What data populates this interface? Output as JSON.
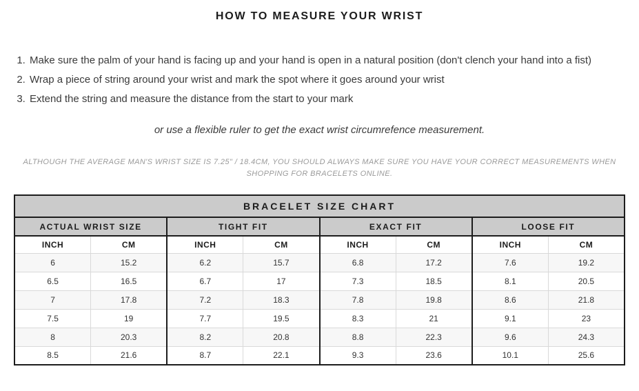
{
  "page": {
    "title": "HOW TO MEASURE YOUR WRIST"
  },
  "instructions": {
    "items": [
      "Make sure the palm of your hand is facing up and your hand is open in a natural position (don't clench your hand into a fist)",
      "Wrap a piece of string around your wrist and mark the spot where it goes around your wrist",
      "Extend the string and measure the distance from the start to your mark"
    ],
    "alternative_note": "or use a flexible ruler to get the exact wrist circumrefence measurement.",
    "disclaimer": "ALTHOUGH THE AVERAGE MAN'S WRIST SIZE IS 7.25\" / 18.4CM, YOU SHOULD ALWAYS MAKE SURE YOU HAVE YOUR CORRECT MEASUREMENTS WHEN SHOPPING FOR BRACELETS ONLINE."
  },
  "chart_data": {
    "type": "table",
    "title": "BRACELET SIZE CHART",
    "column_groups": [
      "ACTUAL WRIST SIZE",
      "TIGHT FIT",
      "EXACT FIT",
      "LOOSE FIT"
    ],
    "unit_headers": [
      "INCH",
      "CM"
    ],
    "rows": [
      [
        "6",
        "15.2",
        "6.2",
        "15.7",
        "6.8",
        "17.2",
        "7.6",
        "19.2"
      ],
      [
        "6.5",
        "16.5",
        "6.7",
        "17",
        "7.3",
        "18.5",
        "8.1",
        "20.5"
      ],
      [
        "7",
        "17.8",
        "7.2",
        "18.3",
        "7.8",
        "19.8",
        "8.6",
        "21.8"
      ],
      [
        "7.5",
        "19",
        "7.7",
        "19.5",
        "8.3",
        "21",
        "9.1",
        "23"
      ],
      [
        "8",
        "20.3",
        "8.2",
        "20.8",
        "8.8",
        "22.3",
        "9.6",
        "24.3"
      ],
      [
        "8.5",
        "21.6",
        "8.7",
        "22.1",
        "9.3",
        "23.6",
        "10.1",
        "25.6"
      ]
    ]
  },
  "colors": {
    "header_bg": "#cbcbcb",
    "row_alt_bg": "#f7f7f7",
    "border_dark": "#1c1c1c",
    "border_light": "#d9d9d9",
    "body_text": "#3a3a3a",
    "muted_text": "#9a9a9a"
  }
}
